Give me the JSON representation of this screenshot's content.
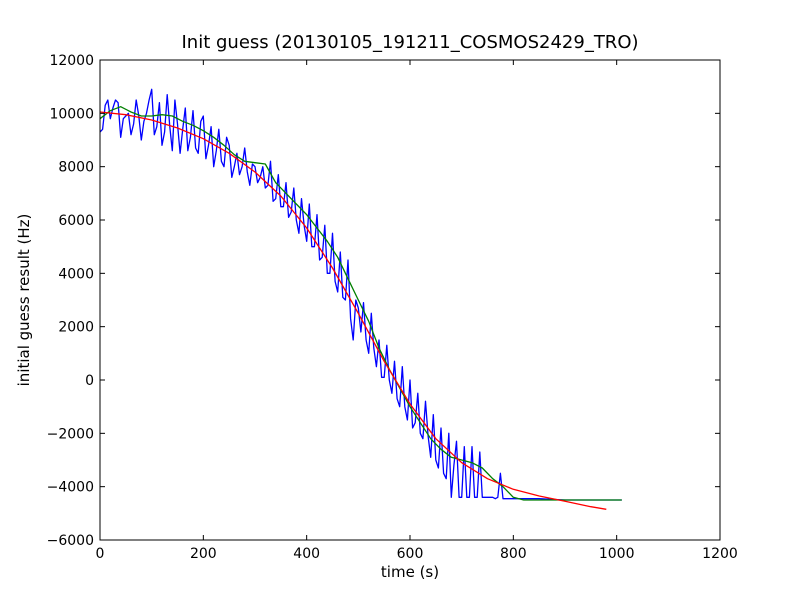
{
  "chart_data": {
    "type": "line",
    "title": "Init guess (20130105_191211_COSMOS2429_TRO)",
    "xlabel": "time (s)",
    "ylabel": "initial guess result (Hz)",
    "xlim": [
      0,
      1200
    ],
    "ylim": [
      -6000,
      12000
    ],
    "xticks": [
      0,
      200,
      400,
      600,
      800,
      1000,
      1200
    ],
    "yticks": [
      -6000,
      -4000,
      -2000,
      0,
      2000,
      4000,
      6000,
      8000,
      10000,
      12000
    ],
    "grid": false,
    "legend": "none",
    "series": [
      {
        "color": "#0000ff",
        "x": [
          0,
          5,
          10,
          15,
          20,
          25,
          30,
          35,
          40,
          45,
          50,
          55,
          60,
          65,
          70,
          75,
          80,
          85,
          90,
          95,
          100,
          105,
          110,
          115,
          120,
          125,
          130,
          135,
          140,
          145,
          150,
          155,
          160,
          165,
          170,
          175,
          180,
          185,
          190,
          195,
          200,
          205,
          210,
          215,
          220,
          225,
          230,
          235,
          240,
          245,
          250,
          255,
          260,
          265,
          270,
          275,
          280,
          285,
          290,
          295,
          300,
          305,
          310,
          315,
          320,
          325,
          330,
          335,
          340,
          345,
          350,
          355,
          360,
          365,
          370,
          375,
          380,
          385,
          390,
          395,
          400,
          405,
          410,
          415,
          420,
          425,
          430,
          435,
          440,
          445,
          450,
          455,
          460,
          465,
          470,
          475,
          480,
          485,
          490,
          495,
          500,
          505,
          510,
          515,
          520,
          525,
          530,
          535,
          540,
          545,
          550,
          555,
          560,
          565,
          570,
          575,
          580,
          585,
          590,
          595,
          600,
          605,
          610,
          615,
          620,
          625,
          630,
          635,
          640,
          645,
          650,
          655,
          660,
          665,
          670,
          675,
          680,
          685,
          690,
          695,
          700,
          705,
          710,
          715,
          720,
          725,
          730,
          735,
          740,
          745,
          750,
          755,
          760,
          765,
          770,
          775,
          780,
          785,
          790,
          800,
          850,
          900,
          950,
          1000,
          1010
        ],
        "y": [
          9300,
          9400,
          10300,
          10500,
          9800,
          10200,
          10500,
          10400,
          9100,
          9800,
          9900,
          10000,
          9200,
          9600,
          10500,
          9900,
          9000,
          9700,
          10000,
          10500,
          10900,
          9200,
          9500,
          10400,
          8800,
          9300,
          10700,
          9500,
          8600,
          10500,
          9600,
          8500,
          9400,
          10200,
          8600,
          9100,
          10100,
          8700,
          8500,
          9700,
          9900,
          8300,
          8800,
          9500,
          8000,
          8600,
          9400,
          8200,
          8000,
          9100,
          8800,
          7600,
          8000,
          8500,
          7700,
          8000,
          8700,
          7800,
          7300,
          8100,
          8000,
          7400,
          7600,
          8000,
          7200,
          7300,
          8200,
          6700,
          6800,
          7700,
          6500,
          6500,
          7400,
          6100,
          6300,
          7200,
          6000,
          5500,
          6800,
          5800,
          5200,
          6600,
          5000,
          5000,
          6200,
          4500,
          4600,
          5800,
          4000,
          4000,
          5500,
          3700,
          3300,
          4800,
          3100,
          3000,
          4500,
          2300,
          1500,
          3000,
          2700,
          1800,
          2900,
          1500,
          1000,
          2500,
          1200,
          500,
          1500,
          100,
          100,
          1300,
          0,
          -500,
          700,
          -700,
          -1000,
          500,
          -1000,
          -1500,
          0,
          -1800,
          -1600,
          -500,
          -2000,
          -2200,
          -800,
          -2100,
          -2900,
          -1300,
          -3000,
          -3300,
          -1800,
          -3500,
          -3700,
          -2000,
          -4400,
          -3200,
          -2300,
          -4400,
          -4400,
          -2500,
          -4400,
          -4400,
          -2500,
          -4400,
          -4400,
          -2700,
          -4400,
          -4400,
          -4400,
          -4400,
          -4400,
          -4450,
          -4400,
          -3500,
          -4450,
          -4450,
          -4450,
          -4450,
          -4450,
          -4500,
          -4500,
          -4500,
          -4500
        ]
      },
      {
        "color": "#008000",
        "x": [
          0,
          20,
          40,
          60,
          80,
          100,
          120,
          140,
          160,
          180,
          200,
          220,
          240,
          260,
          280,
          300,
          320,
          340,
          360,
          380,
          400,
          420,
          440,
          460,
          480,
          500,
          520,
          540,
          560,
          580,
          600,
          620,
          640,
          660,
          680,
          700,
          720,
          740,
          760,
          780,
          800,
          820,
          840,
          860,
          880,
          900,
          950,
          1000,
          1010
        ],
        "y": [
          9800,
          10100,
          10250,
          10050,
          9900,
          9900,
          9950,
          9900,
          9700,
          9550,
          9350,
          9100,
          8800,
          8450,
          8200,
          8150,
          8100,
          7400,
          7000,
          6600,
          6200,
          5700,
          5200,
          4600,
          3800,
          3000,
          2200,
          1200,
          400,
          -300,
          -1000,
          -1600,
          -2200,
          -2600,
          -2900,
          -3000,
          -3100,
          -3300,
          -3700,
          -4000,
          -4400,
          -4500,
          -4500,
          -4500,
          -4500,
          -4500,
          -4500,
          -4500,
          -4500
        ]
      },
      {
        "color": "#ff0000",
        "x": [
          0,
          50,
          100,
          150,
          200,
          250,
          300,
          350,
          400,
          450,
          500,
          550,
          600,
          650,
          700,
          750,
          800,
          850,
          900,
          950,
          980
        ],
        "y": [
          10050,
          9950,
          9750,
          9450,
          9050,
          8500,
          7800,
          6900,
          5700,
          4200,
          2500,
          700,
          -900,
          -2200,
          -3100,
          -3700,
          -4100,
          -4350,
          -4550,
          -4750,
          -4850
        ]
      }
    ]
  }
}
